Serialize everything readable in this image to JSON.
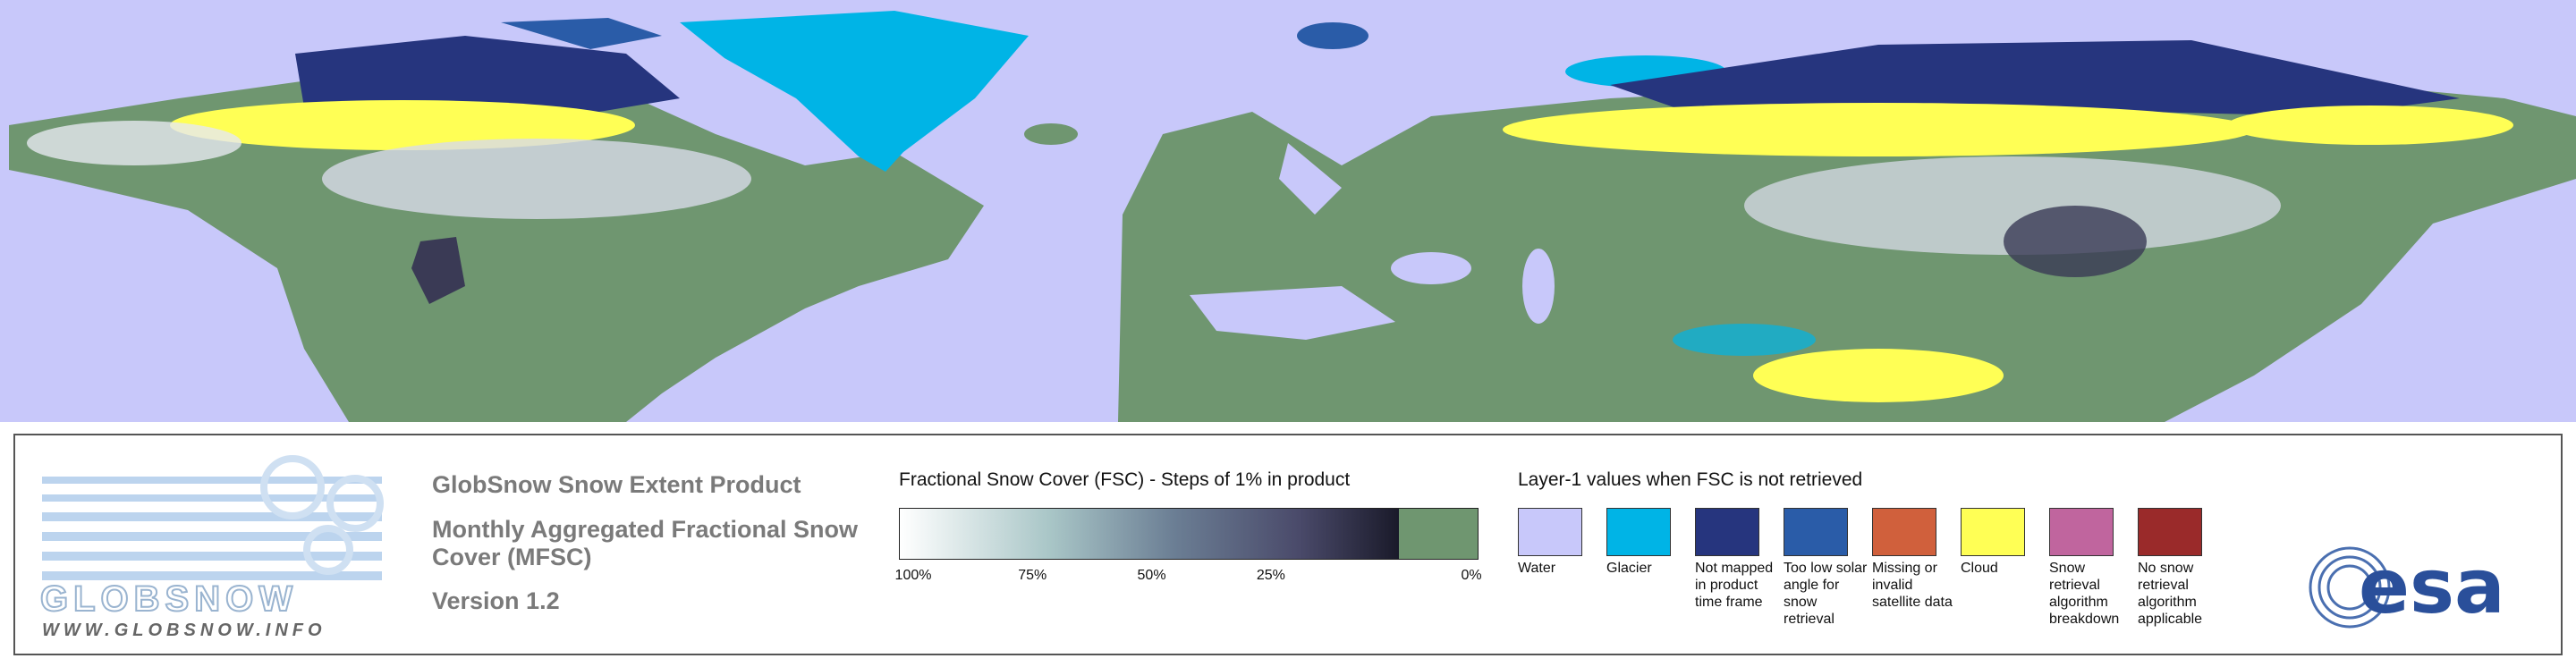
{
  "product": {
    "title": "GlobSnow Snow Extent Product",
    "subtitle": "Monthly Aggregated Fractional Snow Cover (MFSC)",
    "version": "Version 1.2"
  },
  "fsc_legend": {
    "title": "Fractional Snow Cover (FSC) - Steps of 1% in product",
    "labels": [
      "100%",
      "75%",
      "50%",
      "25%",
      "0%"
    ],
    "no_snow_color": "#6f9670"
  },
  "layer1_legend": {
    "title": "Layer-1 values when FSC is not retrieved",
    "items": [
      {
        "label": "Water",
        "color": "#c8c8fa"
      },
      {
        "label": "Glacier",
        "color": "#00b4e6"
      },
      {
        "label": "Not mapped in product time frame",
        "color": "#26357e"
      },
      {
        "label": "Too low solar angle for snow retrieval",
        "color": "#2a5ca8"
      },
      {
        "label": "Missing or invalid satellite data",
        "color": "#d0603c"
      },
      {
        "label": "Cloud",
        "color": "#ffff55"
      },
      {
        "label": "Snow retrieval algorithm breakdown",
        "color": "#c0659e"
      },
      {
        "label": "No snow retrieval algorithm applicable",
        "color": "#9a2a2a"
      }
    ]
  },
  "logos": {
    "globsnow": "GLOBSNOW",
    "url": "WWW.GLOBSNOW.INFO",
    "esa": "esa"
  }
}
